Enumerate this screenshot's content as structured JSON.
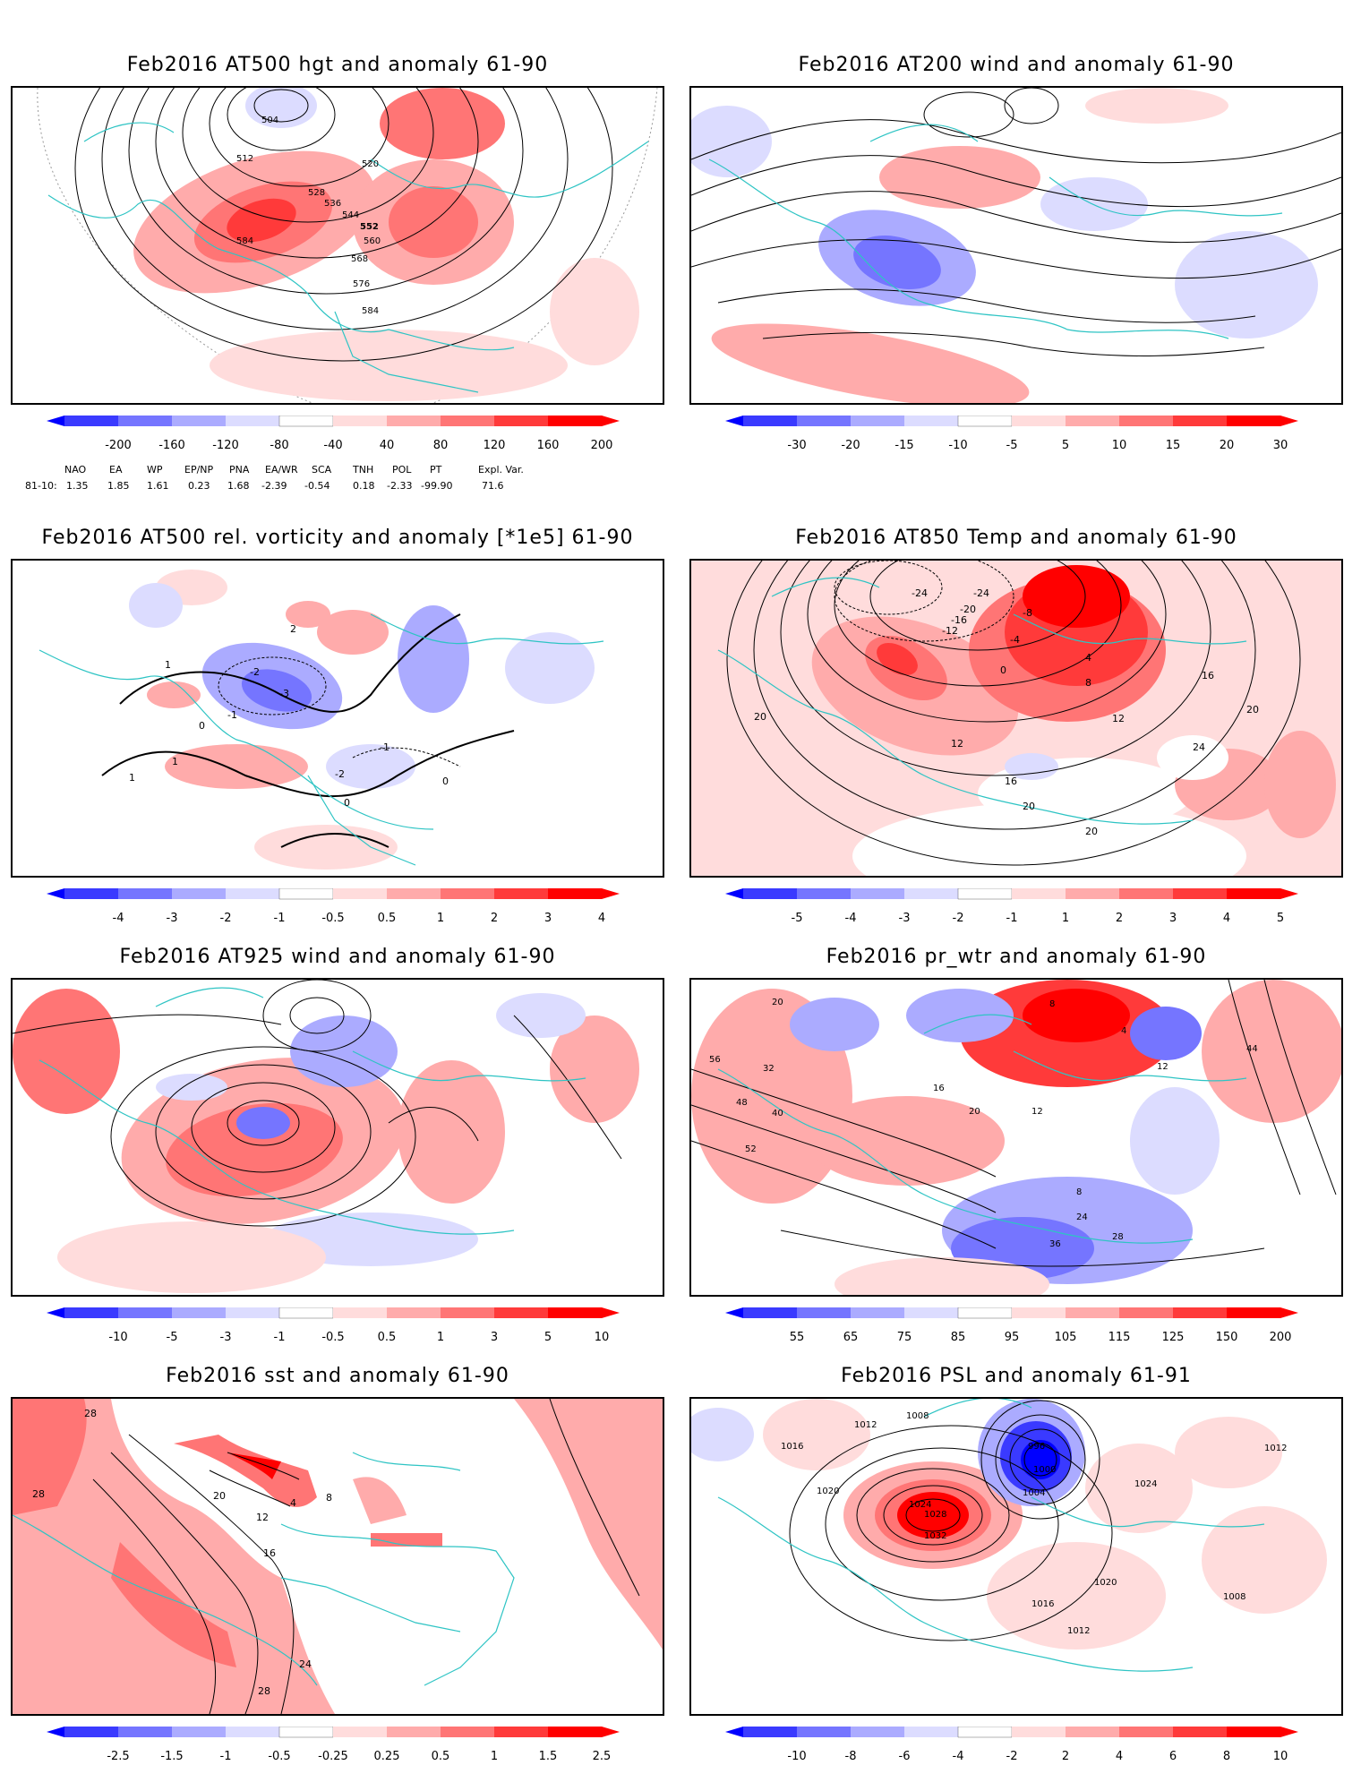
{
  "palette": {
    "blue": [
      "#0000ff",
      "#3a3aff",
      "#7575ff",
      "#ababff",
      "#dcdcff"
    ],
    "red": [
      "#ffdcdc",
      "#ffabab",
      "#ff7575",
      "#ff3a3a",
      "#ff0000"
    ],
    "coast": "#2ec4c4",
    "contour": "#000000"
  },
  "panels": [
    {
      "title": "Feb2016 AT500 hgt and anomaly 61-90",
      "colorbar": [
        "-200",
        "-160",
        "-120",
        "-80",
        "-40",
        "40",
        "80",
        "120",
        "160",
        "200"
      ],
      "contour_labels": [
        "504",
        "512",
        "520",
        "528",
        "536",
        "544",
        "552",
        "560",
        "568",
        "576",
        "584",
        "584"
      ],
      "indices": {
        "headers": [
          "NAO",
          "EA",
          "WP",
          "EP/NP",
          "PNA",
          "EA/WR",
          "SCA",
          "TNH",
          "POL",
          "PT",
          "Expl. Var."
        ],
        "row_label": "81-10:",
        "values": [
          "1.35",
          "1.85",
          "1.61",
          "0.23",
          "1.68",
          "-2.39",
          "-0.54",
          "0.18",
          "-2.33",
          "-99.90",
          "71.6"
        ]
      }
    },
    {
      "title": "Feb2016 AT200 wind and anomaly 61-90",
      "colorbar": [
        "-30",
        "-20",
        "-15",
        "-10",
        "-5",
        "5",
        "10",
        "15",
        "20",
        "30"
      ],
      "contour_labels": []
    },
    {
      "title": "Feb2016 AT500 rel. vorticity and anomaly [*1e5] 61-90",
      "colorbar": [
        "-4",
        "-3",
        "-2",
        "-1",
        "-0.5",
        "0.5",
        "1",
        "2",
        "3",
        "4"
      ],
      "contour_labels": [
        "-2",
        "-3",
        "1",
        "1",
        "-1",
        "0",
        "0",
        "-1",
        "2",
        "-2",
        "1",
        "0"
      ]
    },
    {
      "title": "Feb2016 AT850 Temp and anomaly 61-90",
      "colorbar": [
        "-5",
        "-4",
        "-3",
        "-2",
        "-1",
        "1",
        "2",
        "3",
        "4",
        "5"
      ],
      "contour_labels": [
        "-24",
        "-24",
        "-20",
        "-16",
        "-12",
        "-8",
        "-4",
        "0",
        "4",
        "8",
        "12",
        "12",
        "16",
        "16",
        "20",
        "20",
        "20",
        "24",
        "20"
      ]
    },
    {
      "title": "Feb2016 AT925 wind and anomaly 61-90",
      "colorbar": [
        "-10",
        "-5",
        "-3",
        "-1",
        "-0.5",
        "0.5",
        "1",
        "3",
        "5",
        "10"
      ],
      "contour_labels": []
    },
    {
      "title": "Feb2016 pr_wtr and anomaly 61-90",
      "colorbar": [
        "55",
        "65",
        "75",
        "85",
        "95",
        "105",
        "115",
        "125",
        "150",
        "200"
      ],
      "contour_labels": [
        "20",
        "8",
        "4",
        "12",
        "16",
        "20",
        "12",
        "8",
        "24",
        "36",
        "32",
        "40",
        "44",
        "48",
        "52",
        "56",
        "28"
      ]
    },
    {
      "title": "Feb2016 sst and anomaly 61-90",
      "colorbar": [
        "-2.5",
        "-1.5",
        "-1",
        "-0.5",
        "-0.25",
        "0.25",
        "0.5",
        "1",
        "1.5",
        "2.5"
      ],
      "contour_labels": [
        "28",
        "20",
        "12",
        "16",
        "24",
        "28",
        "4",
        "8",
        "28"
      ]
    },
    {
      "title": "Feb2016 PSL and anomaly 61-91",
      "colorbar": [
        "-10",
        "-8",
        "-6",
        "-4",
        "-2",
        "2",
        "4",
        "6",
        "8",
        "10"
      ],
      "contour_labels": [
        "1024",
        "1028",
        "1032",
        "1020",
        "1016",
        "1012",
        "1008",
        "1004",
        "1000",
        "996",
        "1024",
        "1020",
        "1016",
        "1012",
        "1008",
        "1012"
      ]
    }
  ]
}
